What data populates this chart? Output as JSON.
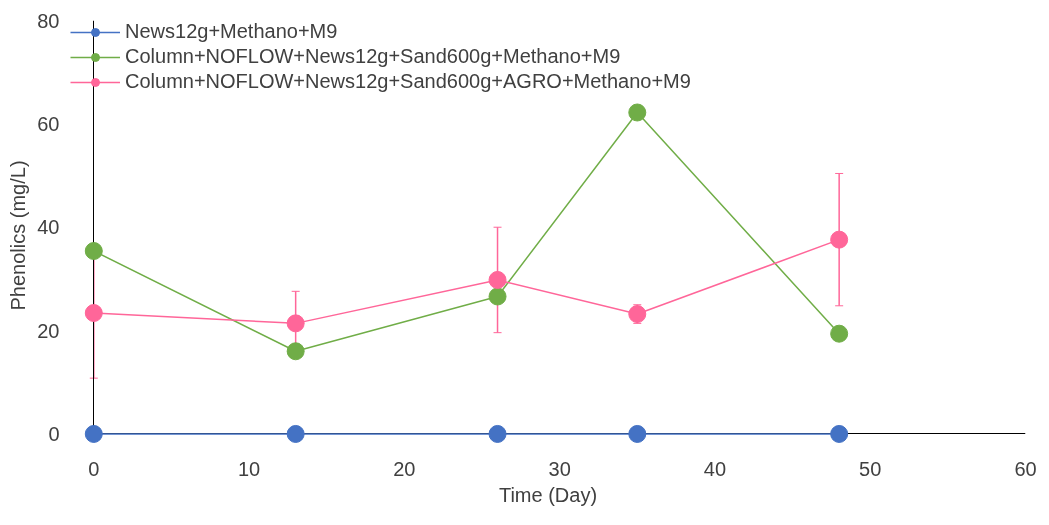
{
  "chart_data": {
    "type": "line",
    "xlabel": "Time (Day)",
    "ylabel": "Phenolics (mg/L)",
    "xlim": [
      0,
      60
    ],
    "xticks": [
      0,
      10,
      20,
      30,
      40,
      50,
      60
    ],
    "ylim": [
      0,
      80
    ],
    "yticks": [
      0,
      20,
      40,
      60,
      80
    ],
    "grid": false,
    "legend": "top left",
    "marker": "circle",
    "line_style": "solid",
    "series": [
      {
        "name": "News12g+Methano+M9",
        "color": "#4472c4",
        "x": [
          0,
          13,
          26,
          35,
          48
        ],
        "values": [
          0,
          0,
          0,
          0,
          0
        ]
      },
      {
        "name": "Column+NOFLOW+News12g+Sand600g+Methano+M9",
        "color": "#70ad47",
        "x": [
          0,
          13,
          26,
          35,
          48
        ],
        "values": [
          35.4,
          16,
          26.6,
          62.2,
          19.4
        ]
      },
      {
        "name": "Column+NOFLOW+News12g+Sand600g+AGRO+Methano+M9",
        "color": "#ff6699",
        "x": [
          0,
          13,
          26,
          35,
          48
        ],
        "values": [
          23.4,
          21.4,
          29.8,
          23.2,
          37.6
        ],
        "errors": [
          12.6,
          6.2,
          10.2,
          1.8,
          12.8
        ]
      }
    ]
  }
}
